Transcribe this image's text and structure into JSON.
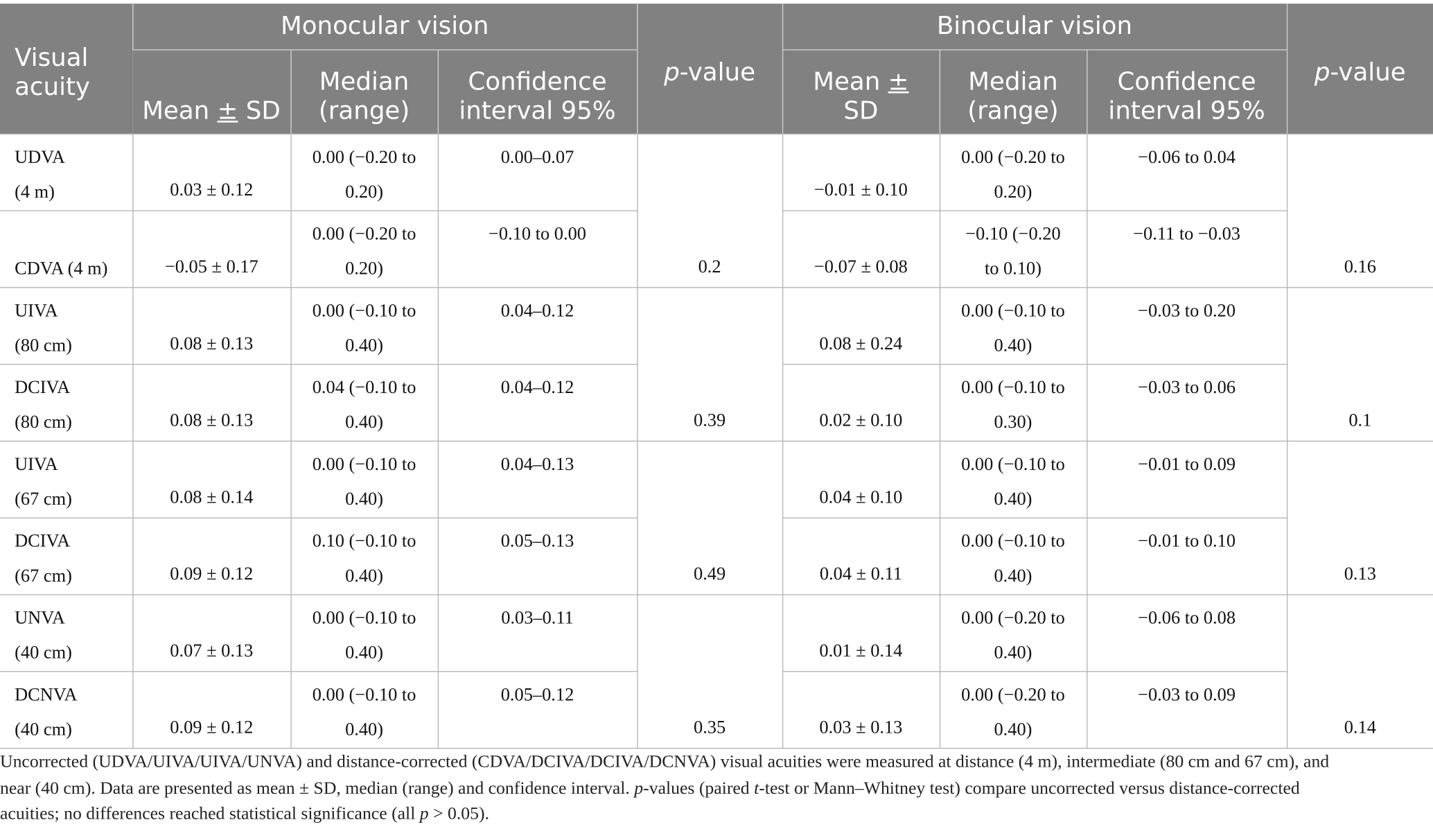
{
  "table": {
    "headers": {
      "visual_acuity": "Visual acuity",
      "monocular": "Monocular vision",
      "binocular": "Binocular vision",
      "p_value_prefix": "p",
      "p_value_suffix": "-value",
      "mean_sd_mono_a": "Mean ",
      "mean_sd_mono_b": "±",
      "mean_sd_mono_c": " SD",
      "mean_sd_bino_a": "Mean ",
      "mean_sd_bino_b": "±",
      "mean_sd_bino_c": "SD",
      "median": "Median",
      "range": "(range)",
      "ci_1": "Confidence",
      "ci_2": "interval 95%"
    },
    "rows": [
      {
        "label_1": "UDVA",
        "label_2": "(4 m)",
        "mono_mean": "0.03 ± 0.12",
        "mono_median_1": "0.00 (−0.20 to",
        "mono_median_2": "0.20)",
        "mono_ci": "0.00–0.07",
        "bino_mean": "−0.01 ± 0.10",
        "bino_median_1": "0.00 (−0.20 to",
        "bino_median_2": "0.20)",
        "bino_ci": "−0.06 to 0.04"
      },
      {
        "label_1": "",
        "label_2": "CDVA (4 m)",
        "mono_mean": "−0.05 ± 0.17",
        "mono_median_1": "0.00 (−0.20 to",
        "mono_median_2": "0.20)",
        "mono_ci": "−0.10 to 0.00",
        "bino_mean": "−0.07 ± 0.08",
        "bino_median_1": "−0.10 (−0.20",
        "bino_median_2": "to 0.10)",
        "bino_ci": "−0.11 to −0.03"
      },
      {
        "label_1": "UIVA",
        "label_2": "(80 cm)",
        "mono_mean": "0.08 ± 0.13",
        "mono_median_1": "0.00 (−0.10 to",
        "mono_median_2": "0.40)",
        "mono_ci": "0.04–0.12",
        "bino_mean": "0.08 ± 0.24",
        "bino_median_1": "0.00 (−0.10 to",
        "bino_median_2": "0.40)",
        "bino_ci": "−0.03 to 0.20"
      },
      {
        "label_1": "DCIVA",
        "label_2": "(80 cm)",
        "mono_mean": "0.08 ± 0.13",
        "mono_median_1": "0.04 (−0.10 to",
        "mono_median_2": "0.40)",
        "mono_ci": "0.04–0.12",
        "bino_mean": "0.02 ± 0.10",
        "bino_median_1": "0.00 (−0.10 to",
        "bino_median_2": "0.30)",
        "bino_ci": "−0.03 to 0.06"
      },
      {
        "label_1": "UIVA",
        "label_2": "(67 cm)",
        "mono_mean": "0.08 ± 0.14",
        "mono_median_1": "0.00 (−0.10 to",
        "mono_median_2": "0.40)",
        "mono_ci": "0.04–0.13",
        "bino_mean": "0.04 ± 0.10",
        "bino_median_1": "0.00 (−0.10 to",
        "bino_median_2": "0.40)",
        "bino_ci": "−0.01 to 0.09"
      },
      {
        "label_1": "DCIVA",
        "label_2": "(67 cm)",
        "mono_mean": "0.09 ± 0.12",
        "mono_median_1": "0.10 (−0.10 to",
        "mono_median_2": "0.40)",
        "mono_ci": "0.05–0.13",
        "bino_mean": "0.04 ± 0.11",
        "bino_median_1": "0.00 (−0.10 to",
        "bino_median_2": "0.40)",
        "bino_ci": "−0.01 to 0.10"
      },
      {
        "label_1": "UNVA",
        "label_2": "(40 cm)",
        "mono_mean": "0.07 ± 0.13",
        "mono_median_1": "0.00 (−0.10 to",
        "mono_median_2": "0.40)",
        "mono_ci": "0.03–0.11",
        "bino_mean": "0.01 ± 0.14",
        "bino_median_1": "0.00 (−0.20 to",
        "bino_median_2": "0.40)",
        "bino_ci": "−0.06 to 0.08"
      },
      {
        "label_1": "DCNVA",
        "label_2": "(40 cm)",
        "mono_mean": "0.09 ± 0.12",
        "mono_median_1": "0.00 (−0.10 to",
        "mono_median_2": "0.40)",
        "mono_ci": "0.05–0.12",
        "bino_mean": "0.03 ± 0.13",
        "bino_median_1": "0.00 (−0.20 to",
        "bino_median_2": "0.40)",
        "bino_ci": "−0.03 to 0.09"
      }
    ],
    "p_mono": [
      "0.2",
      "0.39",
      "0.49",
      "0.35"
    ],
    "p_bino": [
      "0.16",
      "0.1",
      "0.13",
      "0.14"
    ]
  },
  "caption": {
    "line1": "Uncorrected (UDVA/UIVA/UIVA/UNVA) and distance-corrected (CDVA/DCIVA/DCIVA/DCNVA) visual acuities were measured at distance (4 m), intermediate (80 cm and 67 cm), and",
    "line2a": "near (40 cm). Data are presented as mean ± SD, median (range) and confidence interval. ",
    "line2_p": "p",
    "line2b": "-values (paired ",
    "line2_t": "t",
    "line2c": "-test or Mann–Whitney test) compare uncorrected versus distance-corrected",
    "line3a": "acuities; no differences reached statistical significance (all ",
    "line3_p": "p",
    "line3b": " > 0.05)."
  }
}
